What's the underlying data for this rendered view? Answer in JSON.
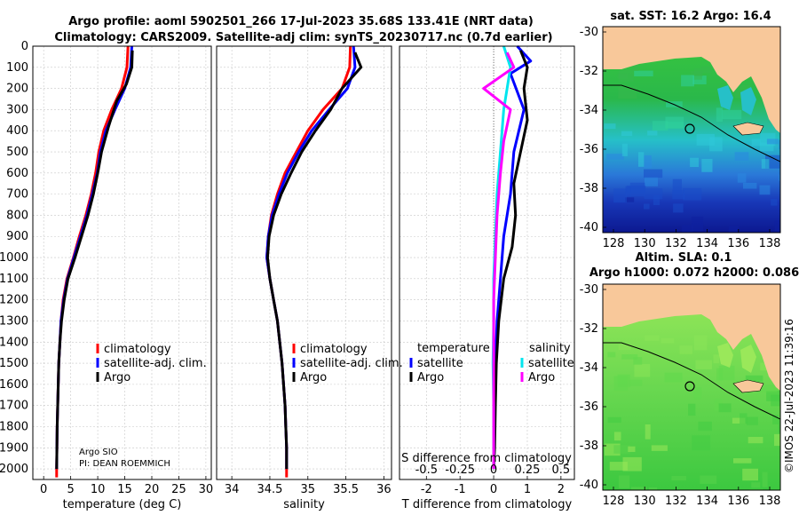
{
  "header": {
    "title_line1": "Argo profile: aoml 5902501_266 17-Jul-2023 35.68S 133.41E (NRT data)",
    "title_line2": "Climatology: CARS2009. Satellite-adj clim: synTS_20230717.nc (0.7d earlier)"
  },
  "colors": {
    "climatology": "#ff0000",
    "satellite": "#0000ff",
    "argo": "#000000",
    "sat_salinity": "#00e5ee",
    "argo_salinity": "#ff00ff",
    "land": "#f8c89a"
  },
  "chart_data": [
    {
      "type": "line",
      "id": "temperature",
      "xlabel": "temperature (deg C)",
      "xlim": [
        -2,
        31
      ],
      "ylim": [
        0,
        2050
      ],
      "x_ticks": [
        0,
        5,
        10,
        15,
        20,
        25,
        30
      ],
      "y_ticks": [
        0,
        100,
        200,
        300,
        400,
        500,
        600,
        700,
        800,
        900,
        1000,
        1100,
        1200,
        1300,
        1400,
        1500,
        1600,
        1700,
        1800,
        1900,
        2000
      ],
      "series": [
        {
          "name": "climatology",
          "color": "#ff0000",
          "points": [
            [
              15.6,
              0
            ],
            [
              15.4,
              100
            ],
            [
              14.4,
              200
            ],
            [
              12.6,
              300
            ],
            [
              11.1,
              400
            ],
            [
              10.2,
              500
            ],
            [
              9.6,
              600
            ],
            [
              8.8,
              700
            ],
            [
              7.8,
              800
            ],
            [
              6.6,
              900
            ],
            [
              5.5,
              1000
            ],
            [
              4.3,
              1100
            ],
            [
              3.6,
              1200
            ],
            [
              3.2,
              1300
            ],
            [
              3.0,
              1400
            ],
            [
              2.8,
              1500
            ],
            [
              2.7,
              1600
            ],
            [
              2.6,
              1700
            ],
            [
              2.5,
              1800
            ],
            [
              2.45,
              1900
            ],
            [
              2.4,
              2000
            ],
            [
              2.4,
              2040
            ]
          ]
        },
        {
          "name": "satellite-adj. clim.",
          "color": "#0000ff",
          "points": [
            [
              16.3,
              0
            ],
            [
              16.1,
              100
            ],
            [
              15.0,
              200
            ],
            [
              13.2,
              300
            ],
            [
              11.5,
              400
            ],
            [
              10.5,
              500
            ],
            [
              9.9,
              600
            ],
            [
              9.0,
              700
            ],
            [
              8.0,
              800
            ],
            [
              6.8,
              900
            ],
            [
              5.6,
              1000
            ],
            [
              4.4,
              1100
            ],
            [
              3.7,
              1200
            ],
            [
              3.2,
              1300
            ],
            [
              3.0,
              1400
            ],
            [
              2.8,
              1500
            ],
            [
              2.7,
              1600
            ],
            [
              2.6,
              1700
            ],
            [
              2.5,
              1800
            ],
            [
              2.45,
              1900
            ],
            [
              2.4,
              2000
            ]
          ]
        },
        {
          "name": "Argo",
          "color": "#000000",
          "points": [
            [
              16.4,
              20
            ],
            [
              16.3,
              100
            ],
            [
              15.3,
              180
            ],
            [
              13.5,
              260
            ],
            [
              12.0,
              380
            ],
            [
              10.7,
              500
            ],
            [
              10.0,
              600
            ],
            [
              9.2,
              700
            ],
            [
              8.2,
              800
            ],
            [
              7.0,
              900
            ],
            [
              5.8,
              1000
            ],
            [
              4.5,
              1100
            ],
            [
              3.8,
              1200
            ],
            [
              3.3,
              1300
            ],
            [
              3.0,
              1400
            ],
            [
              2.8,
              1500
            ],
            [
              2.7,
              1600
            ],
            [
              2.6,
              1700
            ],
            [
              2.5,
              1800
            ],
            [
              2.45,
              1900
            ],
            [
              2.4,
              2000
            ]
          ]
        }
      ],
      "legend": [
        "climatology",
        "satellite-adj. clim.",
        "Argo"
      ],
      "annotation_line1": "Argo SIO",
      "annotation_line2": "PI: DEAN ROEMMICH"
    },
    {
      "type": "line",
      "id": "salinity",
      "xlabel": "salinity",
      "xlim": [
        33.8,
        36.1
      ],
      "ylim": [
        0,
        2050
      ],
      "x_ticks": [
        34,
        34.5,
        35,
        35.5,
        36
      ],
      "series": [
        {
          "name": "climatology",
          "color": "#ff0000",
          "points": [
            [
              35.56,
              0
            ],
            [
              35.55,
              100
            ],
            [
              35.45,
              200
            ],
            [
              35.2,
              300
            ],
            [
              35.0,
              400
            ],
            [
              34.85,
              500
            ],
            [
              34.7,
              600
            ],
            [
              34.6,
              700
            ],
            [
              34.52,
              800
            ],
            [
              34.48,
              900
            ],
            [
              34.46,
              1000
            ],
            [
              34.5,
              1100
            ],
            [
              34.55,
              1200
            ],
            [
              34.6,
              1300
            ],
            [
              34.63,
              1400
            ],
            [
              34.66,
              1500
            ],
            [
              34.68,
              1600
            ],
            [
              34.7,
              1700
            ],
            [
              34.71,
              1800
            ],
            [
              34.72,
              1900
            ],
            [
              34.72,
              2000
            ],
            [
              34.72,
              2040
            ]
          ]
        },
        {
          "name": "satellite-adj. clim.",
          "color": "#0000ff",
          "points": [
            [
              35.6,
              0
            ],
            [
              35.62,
              100
            ],
            [
              35.52,
              200
            ],
            [
              35.28,
              300
            ],
            [
              35.05,
              400
            ],
            [
              34.88,
              500
            ],
            [
              34.73,
              600
            ],
            [
              34.62,
              700
            ],
            [
              34.53,
              800
            ],
            [
              34.48,
              900
            ],
            [
              34.46,
              1000
            ],
            [
              34.5,
              1100
            ],
            [
              34.55,
              1200
            ],
            [
              34.6,
              1300
            ],
            [
              34.63,
              1400
            ],
            [
              34.66,
              1500
            ],
            [
              34.68,
              1600
            ],
            [
              34.7,
              1700
            ],
            [
              34.71,
              1800
            ],
            [
              34.72,
              1900
            ],
            [
              34.72,
              2000
            ]
          ]
        },
        {
          "name": "Argo",
          "color": "#000000",
          "points": [
            [
              35.62,
              30
            ],
            [
              35.7,
              100
            ],
            [
              35.45,
              200
            ],
            [
              35.3,
              300
            ],
            [
              35.1,
              400
            ],
            [
              34.92,
              500
            ],
            [
              34.78,
              600
            ],
            [
              34.65,
              700
            ],
            [
              34.55,
              800
            ],
            [
              34.49,
              900
            ],
            [
              34.47,
              1000
            ],
            [
              34.5,
              1100
            ],
            [
              34.55,
              1200
            ],
            [
              34.6,
              1300
            ],
            [
              34.63,
              1400
            ],
            [
              34.66,
              1500
            ],
            [
              34.68,
              1600
            ],
            [
              34.7,
              1700
            ],
            [
              34.71,
              1800
            ],
            [
              34.72,
              1900
            ],
            [
              34.72,
              2000
            ]
          ]
        }
      ],
      "legend": [
        "climatology",
        "satellite-adj. clim.",
        "Argo"
      ]
    },
    {
      "type": "line",
      "id": "differences",
      "xlabel": "T difference from climatology",
      "xlabel_top": "S difference from climatology",
      "xlim": [
        -2.8,
        2.4
      ],
      "ylim": [
        0,
        2050
      ],
      "x_ticks": [
        -2,
        -1,
        0,
        1,
        2
      ],
      "x_ticks_top": [
        "-0.5",
        "-0.25",
        "0",
        "0.25",
        "0.5"
      ],
      "series": [
        {
          "name": "temperature satellite",
          "color": "#0000ff",
          "points": [
            [
              0.7,
              0
            ],
            [
              1.1,
              70
            ],
            [
              0.5,
              130
            ],
            [
              0.9,
              300
            ],
            [
              0.6,
              500
            ],
            [
              0.5,
              700
            ],
            [
              0.3,
              900
            ],
            [
              0.2,
              1100
            ],
            [
              0.1,
              1300
            ],
            [
              0.05,
              1500
            ],
            [
              0.03,
              1700
            ],
            [
              0.02,
              1900
            ],
            [
              0.0,
              2000
            ]
          ]
        },
        {
          "name": "temperature Argo",
          "color": "#000000",
          "points": [
            [
              0.8,
              20
            ],
            [
              1.0,
              100
            ],
            [
              0.9,
              200
            ],
            [
              1.0,
              350
            ],
            [
              0.8,
              500
            ],
            [
              0.6,
              650
            ],
            [
              0.65,
              800
            ],
            [
              0.55,
              950
            ],
            [
              0.3,
              1100
            ],
            [
              0.15,
              1300
            ],
            [
              0.08,
              1500
            ],
            [
              0.05,
              1700
            ],
            [
              0.03,
              1900
            ],
            [
              0.0,
              2000
            ]
          ]
        },
        {
          "name": "salinity satellite",
          "color": "#00e5ee",
          "points": [
            [
              0.3,
              0
            ],
            [
              0.5,
              100
            ],
            [
              0.4,
              200
            ],
            [
              0.3,
              300
            ],
            [
              0.2,
              500
            ],
            [
              0.1,
              700
            ],
            [
              0.05,
              900
            ],
            [
              0.0,
              1100
            ],
            [
              0.0,
              1300
            ],
            [
              -0.02,
              1500
            ],
            [
              0.0,
              1700
            ],
            [
              0.0,
              1900
            ],
            [
              0.0,
              2000
            ]
          ]
        },
        {
          "name": "salinity Argo",
          "color": "#ff00ff",
          "points": [
            [
              0.4,
              30
            ],
            [
              0.6,
              100
            ],
            [
              -0.3,
              200
            ],
            [
              0.5,
              300
            ],
            [
              0.3,
              450
            ],
            [
              0.2,
              600
            ],
            [
              0.1,
              800
            ],
            [
              0.05,
              1000
            ],
            [
              0.0,
              1200
            ],
            [
              0.0,
              1400
            ],
            [
              0.0,
              1600
            ],
            [
              0.0,
              1800
            ],
            [
              0.0,
              2000
            ]
          ]
        }
      ],
      "legend_left_title": "temperature",
      "legend_right_title": "salinity",
      "legend_left": [
        "satellite",
        "Argo"
      ],
      "legend_right": [
        "satellite",
        "Argo"
      ]
    }
  ],
  "maps": {
    "sst_title": "sat. SST: 16.2 Argo: 16.4",
    "sla_title_line1": "Altim. SLA: 0.1",
    "sla_title_line2": "Argo h1000: 0.072 h2000: 0.086",
    "lon_ticks": [
      "128",
      "130",
      "132",
      "134",
      "136",
      "138"
    ],
    "lat_ticks": [
      "-30",
      "-32",
      "-34",
      "-36",
      "-38",
      "-40"
    ],
    "float_position": {
      "lon": 133.41,
      "lat": -35.68
    }
  },
  "credit": "©IMOS 22-Jul-2023 11:39:16"
}
